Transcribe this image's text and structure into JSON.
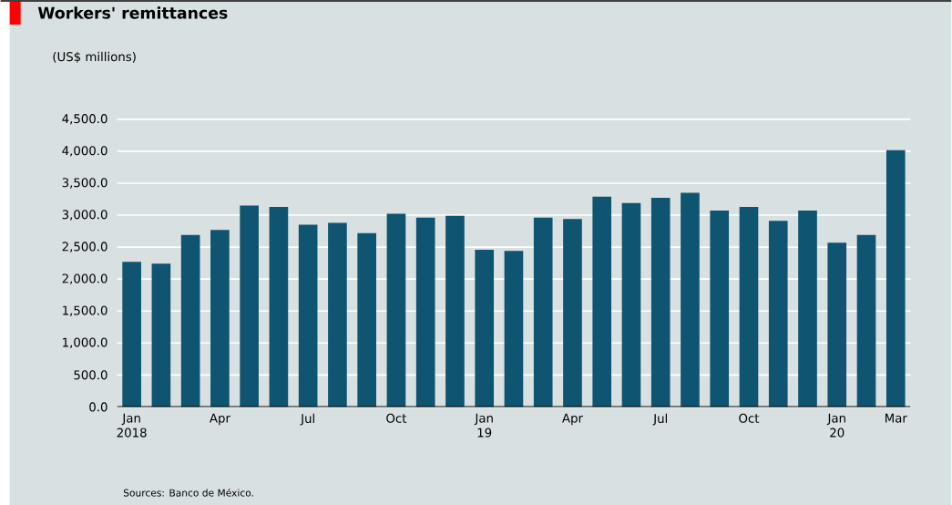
{
  "chart_data": {
    "type": "bar",
    "title": "Workers' remittances",
    "subtitle": "(US$ millions)",
    "categories": [
      "Jan 2018",
      null,
      null,
      "Apr",
      null,
      null,
      "Jul",
      null,
      null,
      "Oct",
      null,
      null,
      "Jan 19",
      null,
      null,
      "Apr",
      null,
      null,
      "Jul",
      null,
      null,
      "Oct",
      null,
      null,
      "Jan 20",
      null,
      "Mar"
    ],
    "values": [
      2270,
      2240,
      2690,
      2770,
      3150,
      3130,
      2850,
      2880,
      2720,
      3020,
      2960,
      2990,
      2460,
      2440,
      2960,
      2940,
      3290,
      3190,
      3270,
      3350,
      3070,
      3130,
      2910,
      3070,
      2570,
      2690,
      4020
    ],
    "color": "#0f5470",
    "ylim": [
      0,
      4500
    ],
    "yticks": [
      {
        "value": 0,
        "label": "0.0"
      },
      {
        "value": 500,
        "label": "500.0"
      },
      {
        "value": 1000,
        "label": "1,000.0"
      },
      {
        "value": 1500,
        "label": "1,500.0"
      },
      {
        "value": 2000,
        "label": "2,000.0"
      },
      {
        "value": 2500,
        "label": "2,500.0"
      },
      {
        "value": 3000,
        "label": "3,000.0"
      },
      {
        "value": 3500,
        "label": "3,500.0"
      },
      {
        "value": 4000,
        "label": "4,000.0"
      },
      {
        "value": 4500,
        "label": "4,500.0"
      }
    ],
    "grid": "y",
    "annotations": [
      "Sources: Banco de México."
    ]
  }
}
